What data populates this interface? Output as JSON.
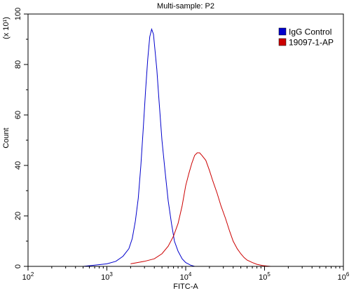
{
  "chart_data": {
    "type": "line",
    "title": "Multi-sample: P2",
    "xlabel": "FITC-A",
    "ylabel": "Count",
    "y_multiplier_label": "(x 10¹)",
    "x_scale": "log",
    "xlim": [
      100,
      1000000
    ],
    "ylim": [
      0,
      100
    ],
    "x_ticks": [
      {
        "value": 100,
        "base": "10",
        "exp": "2"
      },
      {
        "value": 1000,
        "base": "10",
        "exp": "3"
      },
      {
        "value": 10000,
        "base": "10",
        "exp": "4"
      },
      {
        "value": 100000,
        "base": "10",
        "exp": "5"
      },
      {
        "value": 1000000,
        "base": "10",
        "exp": "6"
      }
    ],
    "y_ticks": [
      0,
      20,
      40,
      60,
      80,
      100
    ],
    "grid": false,
    "legend_position": "top-right",
    "series": [
      {
        "name": "IgG Control",
        "color": "#0000cc",
        "x": [
          500,
          700,
          1000,
          1300,
          1600,
          1900,
          2100,
          2300,
          2500,
          2700,
          2900,
          3100,
          3300,
          3500,
          3700,
          3900,
          4100,
          4300,
          4600,
          5000,
          5500,
          6000,
          6600,
          7200,
          8000,
          9000,
          10000,
          11500,
          13000
        ],
        "y": [
          0,
          0.5,
          1,
          2,
          4,
          7,
          11,
          18,
          27,
          40,
          55,
          70,
          82,
          91,
          94,
          92,
          85,
          78,
          65,
          50,
          37,
          26,
          17,
          10,
          6,
          3,
          1.5,
          0.5,
          0
        ]
      },
      {
        "name": "19097-1-AP",
        "color": "#cc0000",
        "x": [
          2000,
          3000,
          4000,
          5000,
          6000,
          7000,
          8000,
          9000,
          10000,
          11000,
          12000,
          13000,
          14000,
          15000,
          16000,
          18000,
          20000,
          22000,
          25000,
          28000,
          32000,
          36000,
          40000,
          45000,
          50000,
          55000,
          60000,
          70000,
          80000,
          95000,
          120000
        ],
        "y": [
          1,
          2,
          3,
          5,
          8,
          12,
          17,
          24,
          32,
          37,
          41,
          44,
          45,
          45,
          44,
          42,
          38,
          34,
          29,
          24,
          19,
          14,
          10,
          7,
          5,
          3.5,
          2.5,
          1.5,
          0.8,
          0.3,
          0
        ]
      }
    ]
  }
}
